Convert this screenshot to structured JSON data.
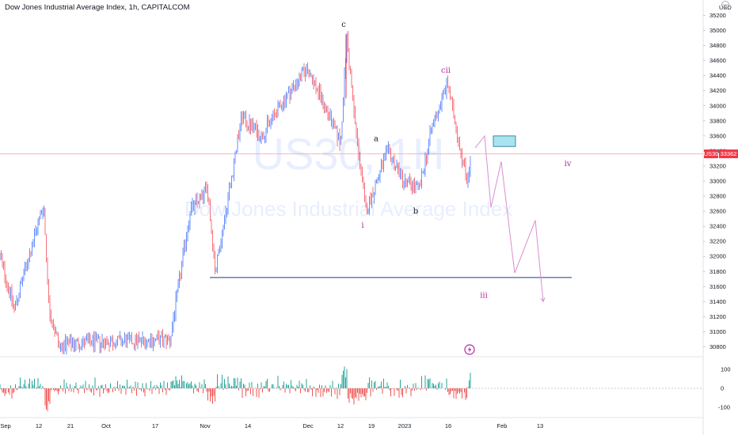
{
  "header": {
    "title": "Dow Jones Industrial Average Index, 1h, CAPITALCOM"
  },
  "watermark": {
    "symbol": "US30, 1H",
    "name": "Dow Jones Industrial Average Index"
  },
  "colors": {
    "up": "#2962ff",
    "down": "#f23645",
    "wave": "#b02a9a",
    "level": "#1e3a8a",
    "box": "#a8e4f0",
    "osc_up": "#26a69a",
    "osc_down": "#ef5350"
  },
  "icons": {
    "menu": "ellipsis-icon",
    "flash": "lightning-icon"
  },
  "price_axis": {
    "currency": "USD",
    "ticks": [
      "35200",
      "35000",
      "34800",
      "34600",
      "34400",
      "34200",
      "34000",
      "33800",
      "33600",
      "33400",
      "33200",
      "33000",
      "32800",
      "32600",
      "32400",
      "32200",
      "32000",
      "31800",
      "31600",
      "31400",
      "31200",
      "31000",
      "30800"
    ],
    "current_badge": {
      "symbol": "US30",
      "value": "33362"
    }
  },
  "osc_axis": {
    "ticks": [
      "100",
      "0",
      "-100"
    ]
  },
  "time_axis": {
    "ticks": [
      "Sep",
      "12",
      "21",
      "Oct",
      "17",
      "Nov",
      "14",
      "Dec",
      "12",
      "19",
      "2023",
      "16",
      "Feb",
      "13"
    ]
  },
  "chart_data": {
    "type": "line",
    "series_name": "",
    "x_label": "",
    "y_label": "",
    "y_range": [
      30700,
      35300
    ],
    "osc_range": [
      -150,
      150
    ],
    "anchors": [
      {
        "t": 0,
        "p": 32000
      },
      {
        "t": 18,
        "p": 31300
      },
      {
        "t": 55,
        "p": 32700
      },
      {
        "t": 62,
        "p": 31300
      },
      {
        "t": 75,
        "p": 30800
      },
      {
        "t": 95,
        "p": 30850
      },
      {
        "t": 215,
        "p": 30900
      },
      {
        "t": 240,
        "p": 32600
      },
      {
        "t": 262,
        "p": 32900
      },
      {
        "t": 272,
        "p": 31800
      },
      {
        "t": 290,
        "p": 32900
      },
      {
        "t": 305,
        "p": 33850
      },
      {
        "t": 330,
        "p": 33600
      },
      {
        "t": 360,
        "p": 34100
      },
      {
        "t": 388,
        "p": 34500
      },
      {
        "t": 410,
        "p": 34000
      },
      {
        "t": 430,
        "p": 33500
      },
      {
        "t": 438,
        "p": 34900
      },
      {
        "t": 448,
        "p": 33800
      },
      {
        "t": 462,
        "p": 32600
      },
      {
        "t": 490,
        "p": 33400
      },
      {
        "t": 510,
        "p": 33000
      },
      {
        "t": 530,
        "p": 32900
      },
      {
        "t": 545,
        "p": 33700
      },
      {
        "t": 565,
        "p": 34300
      },
      {
        "t": 580,
        "p": 33500
      },
      {
        "t": 590,
        "p": 33000
      },
      {
        "t": 595,
        "p": 33362
      }
    ],
    "levels": [
      {
        "price": 31720,
        "x_start": 265,
        "x_end": 722
      }
    ],
    "current_price": 33362,
    "wave_labels": [
      {
        "text": "c",
        "t": 434,
        "p": 35050,
        "color": "#131722"
      },
      {
        "text": "a",
        "t": 475,
        "p": 33530,
        "color": "#131722"
      },
      {
        "text": "b",
        "t": 525,
        "p": 32570,
        "color": "#131722"
      },
      {
        "text": "i",
        "t": 458,
        "p": 32380,
        "color": "#b02a9a"
      },
      {
        "text": "cii",
        "t": 563,
        "p": 34440,
        "color": "#b02a9a"
      },
      {
        "text": "iv",
        "t": 717,
        "p": 33200,
        "color": "#b02a9a"
      },
      {
        "text": "iii",
        "t": 611,
        "p": 31450,
        "color": "#b02a9a"
      }
    ],
    "projection": [
      {
        "t": 600,
        "p": 33440
      },
      {
        "t": 612,
        "p": 33600
      },
      {
        "t": 620,
        "p": 32650
      },
      {
        "t": 633,
        "p": 33260
      },
      {
        "t": 650,
        "p": 31780
      },
      {
        "t": 676,
        "p": 32480
      },
      {
        "t": 686,
        "p": 31400
      }
    ],
    "target_box": {
      "t0": 623,
      "t1": 651,
      "p0": 33460,
      "p1": 33600
    }
  }
}
